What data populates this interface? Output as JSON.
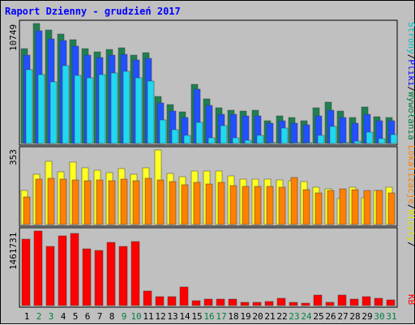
{
  "title": "Raport Dzienny -  grudzień 2017",
  "colors": {
    "background": "#c0c0c0",
    "plot_bg": "#c0c0c0",
    "title": "#0000ff",
    "weekday_label": "#000000",
    "weekend_label": "#008040"
  },
  "legend_right": {
    "top": [
      {
        "text": "Wywołania",
        "color": "#008040"
      },
      {
        "text": "/",
        "color": "#000000"
      },
      {
        "text": "Pliki",
        "color": "#0000ff"
      },
      {
        "text": "/",
        "color": "#000000"
      },
      {
        "text": "Strony",
        "color": "#00c0c0"
      }
    ],
    "middle": [
      {
        "text": "/",
        "color": "#000000"
      },
      {
        "text": "Wizyty",
        "color": "#e0e000"
      },
      {
        "text": "/",
        "color": "#000000"
      },
      {
        "text": "Lokalizacje",
        "color": "#ff8000"
      }
    ],
    "bottom": [
      {
        "text": "KB",
        "color": "#ff0000"
      }
    ]
  },
  "chart_data": [
    {
      "type": "bar",
      "panel": "hits-files-pages",
      "y_max_label": "10749",
      "ylim": [
        0,
        10749
      ],
      "categories": [
        "1",
        "2",
        "3",
        "4",
        "5",
        "6",
        "7",
        "8",
        "9",
        "10",
        "11",
        "12",
        "13",
        "14",
        "15",
        "16",
        "17",
        "18",
        "19",
        "20",
        "21",
        "22",
        "23",
        "24",
        "25",
        "26",
        "27",
        "28",
        "29",
        "30",
        "31"
      ],
      "weekend_days": [
        "2",
        "3",
        "9",
        "10",
        "16",
        "17",
        "23",
        "24",
        "30",
        "31"
      ],
      "series": [
        {
          "name": "Wywołania",
          "color": "#1e8050",
          "values": [
            8500,
            10749,
            10200,
            9800,
            9300,
            8500,
            8200,
            8400,
            8600,
            7900,
            8100,
            4200,
            3500,
            2800,
            5300,
            4000,
            3200,
            3000,
            2900,
            3000,
            2000,
            2500,
            2300,
            2000,
            3200,
            3700,
            2900,
            2300,
            3300,
            2400,
            2300
          ]
        },
        {
          "name": "Pliki",
          "color": "#2050ff",
          "values": [
            7900,
            10100,
            9400,
            9200,
            8700,
            7900,
            7700,
            7900,
            8000,
            7500,
            7600,
            3600,
            2900,
            2300,
            4900,
            3400,
            2600,
            2600,
            2500,
            2500,
            1800,
            2000,
            1800,
            1700,
            2500,
            3000,
            2300,
            1800,
            2600,
            2000,
            2000
          ]
        },
        {
          "name": "Strony",
          "color": "#20d8f0",
          "values": [
            6600,
            6200,
            5500,
            7000,
            6100,
            5900,
            6200,
            6300,
            6500,
            5900,
            5600,
            2100,
            1200,
            700,
            1900,
            500,
            1600,
            500,
            300,
            700,
            100,
            1400,
            100,
            100,
            700,
            1500,
            100,
            200,
            1000,
            400,
            800
          ]
        }
      ]
    },
    {
      "type": "bar",
      "panel": "visits-sites",
      "y_max_label": "353",
      "ylim": [
        0,
        353
      ],
      "categories": [
        "1",
        "2",
        "3",
        "4",
        "5",
        "6",
        "7",
        "8",
        "9",
        "10",
        "11",
        "12",
        "13",
        "14",
        "15",
        "16",
        "17",
        "18",
        "19",
        "20",
        "21",
        "22",
        "23",
        "24",
        "25",
        "26",
        "27",
        "28",
        "29",
        "30",
        "31"
      ],
      "series": [
        {
          "name": "Wizyty",
          "color": "#ffff20",
          "values": [
            162,
            238,
            300,
            250,
            295,
            268,
            258,
            244,
            264,
            238,
            268,
            353,
            240,
            225,
            252,
            252,
            252,
            232,
            216,
            216,
            215,
            210,
            208,
            202,
            175,
            168,
            124,
            175,
            125,
            160,
            178
          ]
        },
        {
          "name": "Lokalizacje",
          "color": "#ff8000",
          "values": [
            130,
            216,
            220,
            215,
            212,
            208,
            210,
            206,
            216,
            208,
            218,
            210,
            202,
            188,
            198,
            190,
            198,
            184,
            180,
            180,
            182,
            176,
            224,
            166,
            148,
            160,
            170,
            166,
            162,
            160,
            150
          ]
        }
      ]
    },
    {
      "type": "bar",
      "panel": "kb",
      "y_max_label": "1461731",
      "ylim": [
        0,
        1461731
      ],
      "categories": [
        "1",
        "2",
        "3",
        "4",
        "5",
        "6",
        "7",
        "8",
        "9",
        "10",
        "11",
        "12",
        "13",
        "14",
        "15",
        "16",
        "17",
        "18",
        "19",
        "20",
        "21",
        "22",
        "23",
        "24",
        "25",
        "26",
        "27",
        "28",
        "29",
        "30",
        "31"
      ],
      "series": [
        {
          "name": "KB",
          "color": "#ff0000",
          "values": [
            1310000,
            1461731,
            1160000,
            1360000,
            1410000,
            1120000,
            1080000,
            1240000,
            1160000,
            1260000,
            290000,
            170000,
            170000,
            370000,
            100000,
            120000,
            120000,
            120000,
            70000,
            60000,
            80000,
            150000,
            60000,
            50000,
            200000,
            70000,
            200000,
            120000,
            170000,
            150000,
            110000
          ]
        }
      ]
    }
  ]
}
